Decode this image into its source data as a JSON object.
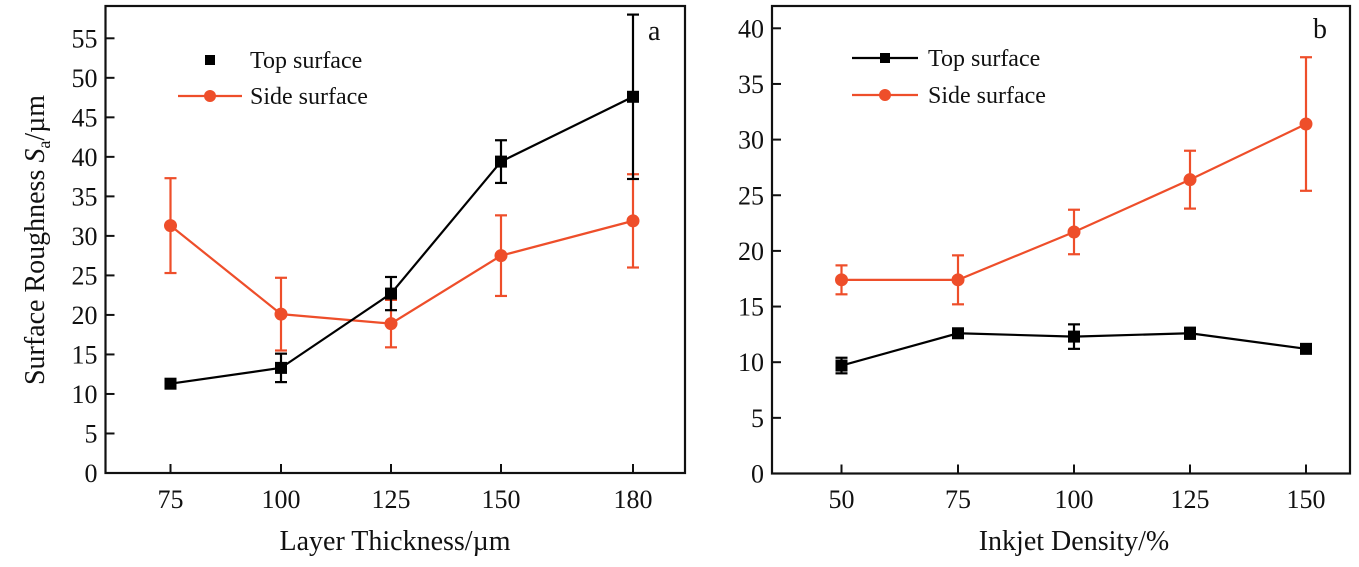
{
  "colors": {
    "top": "#000000",
    "side": "#EE4E2A",
    "axis": "#111111"
  },
  "chart_data": [
    {
      "type": "line",
      "panel_tag": "a",
      "title": "",
      "xlabel": "Layer Thickness/µm",
      "ylabel_main": "Surface Roughness ",
      "ylabel_symbol": "S",
      "ylabel_subscript": "a",
      "ylabel_unit": "/µm",
      "x": [
        75,
        100,
        125,
        150,
        180
      ],
      "x_tick_labels": [
        "75",
        "100",
        "125",
        "150",
        "180"
      ],
      "x_is_categorical": true,
      "ylim": [
        0,
        55
      ],
      "y_ticks": [
        0,
        5,
        10,
        15,
        20,
        25,
        30,
        35,
        40,
        45,
        50,
        55
      ],
      "grid": false,
      "legend_position": "top-left",
      "series": [
        {
          "name": "Top surface",
          "key": "top",
          "marker": "square",
          "legend_line": false,
          "values": [
            11.3,
            13.3,
            22.7,
            39.4,
            47.6
          ],
          "errors": [
            0.5,
            1.8,
            2.1,
            2.7,
            10.4
          ]
        },
        {
          "name": "Side surface",
          "key": "side",
          "marker": "circle",
          "legend_line": true,
          "values": [
            31.3,
            20.1,
            18.9,
            27.5,
            31.9
          ],
          "errors": [
            6.0,
            4.6,
            3.0,
            5.1,
            5.9
          ]
        }
      ]
    },
    {
      "type": "line",
      "panel_tag": "b",
      "title": "",
      "xlabel": "Inkjet Density/%",
      "x": [
        50,
        75,
        100,
        125,
        150
      ],
      "x_tick_labels": [
        "50",
        "75",
        "100",
        "125",
        "150"
      ],
      "x_is_categorical": true,
      "ylim": [
        0,
        40
      ],
      "y_ticks": [
        0,
        5,
        10,
        15,
        20,
        25,
        30,
        35,
        40
      ],
      "grid": false,
      "legend_position": "top-left",
      "series": [
        {
          "name": "Top surface",
          "key": "top",
          "marker": "square",
          "legend_line": true,
          "values": [
            9.7,
            12.6,
            12.3,
            12.6,
            11.2
          ],
          "errors": [
            0.7,
            0.3,
            1.1,
            0.5,
            0.3
          ]
        },
        {
          "name": "Side surface",
          "key": "side",
          "marker": "circle",
          "legend_line": true,
          "values": [
            17.4,
            17.4,
            21.7,
            26.4,
            31.4
          ],
          "errors": [
            1.3,
            2.2,
            2.0,
            2.6,
            6.0
          ]
        }
      ]
    }
  ]
}
